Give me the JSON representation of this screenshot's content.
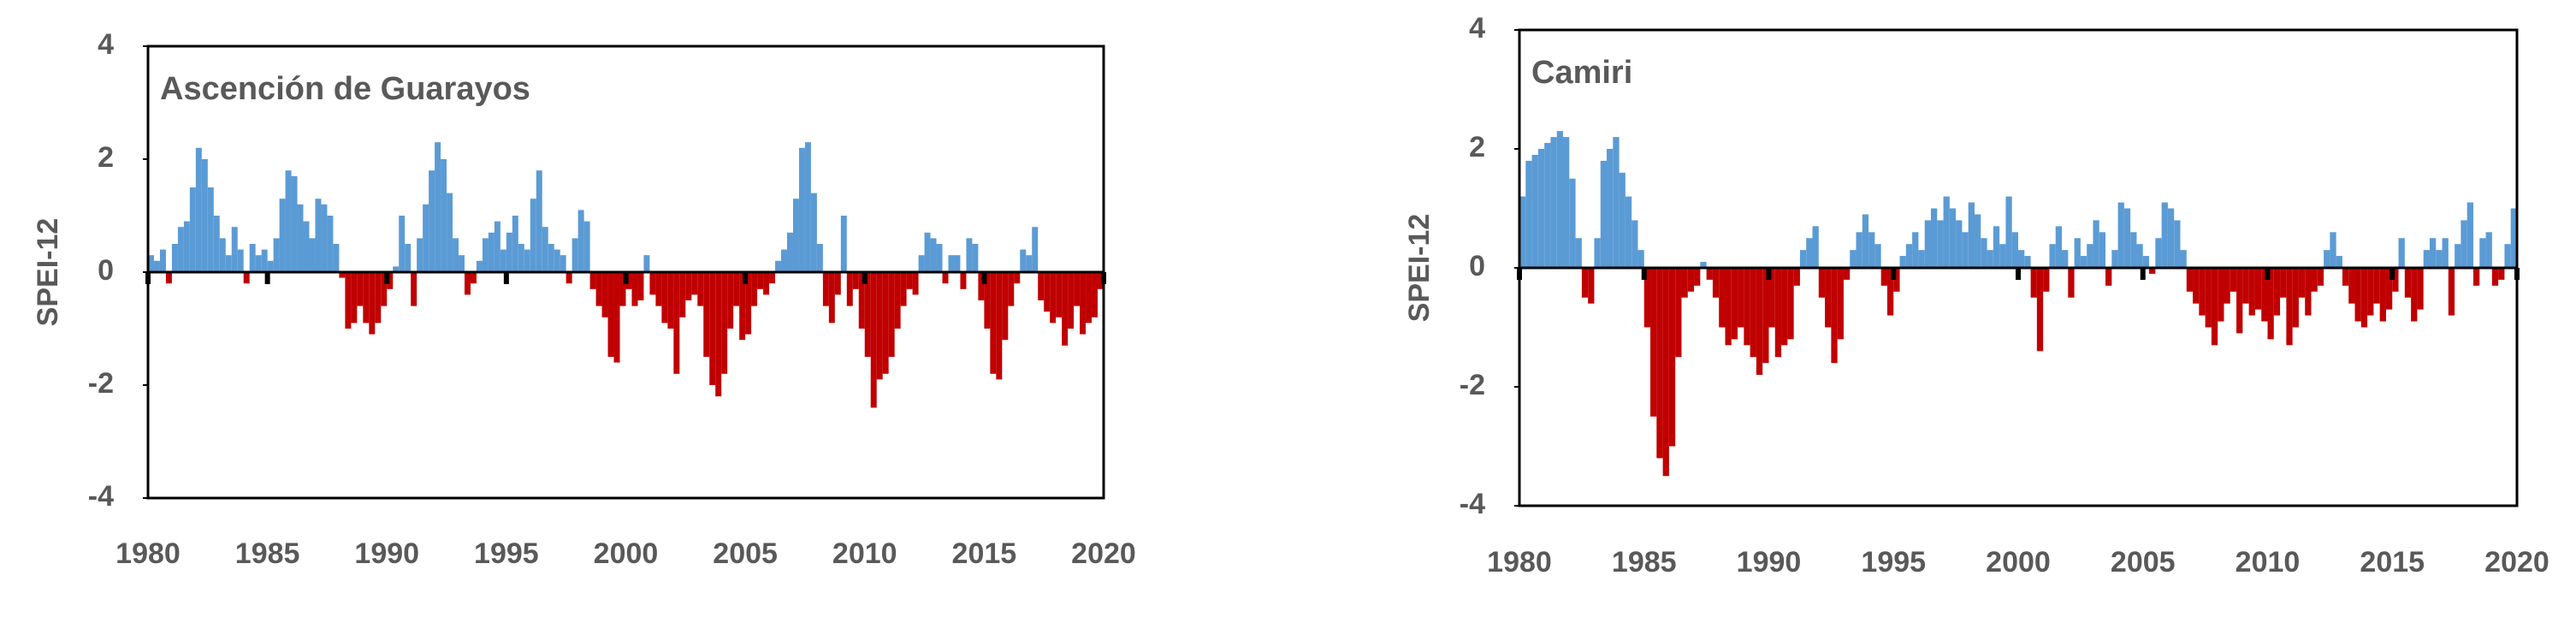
{
  "chart_data": [
    {
      "type": "bar",
      "title": "Ascención de Guarayos",
      "y_label": "SPEI-12",
      "x": [
        1980,
        1980.25,
        1980.5,
        1980.75,
        1981,
        1981.25,
        1981.5,
        1981.75,
        1982,
        1982.25,
        1982.5,
        1982.75,
        1983,
        1983.25,
        1983.5,
        1983.75,
        1984,
        1984.25,
        1984.5,
        1984.75,
        1985,
        1985.25,
        1985.5,
        1985.75,
        1986,
        1986.25,
        1986.5,
        1986.75,
        1987,
        1987.25,
        1987.5,
        1987.75,
        1988,
        1988.25,
        1988.5,
        1988.75,
        1989,
        1989.25,
        1989.5,
        1989.75,
        1990,
        1990.25,
        1990.5,
        1990.75,
        1991,
        1991.25,
        1991.5,
        1991.75,
        1992,
        1992.25,
        1992.5,
        1992.75,
        1993,
        1993.25,
        1993.5,
        1993.75,
        1994,
        1994.25,
        1994.5,
        1994.75,
        1995,
        1995.25,
        1995.5,
        1995.75,
        1996,
        1996.25,
        1996.5,
        1996.75,
        1997,
        1997.25,
        1997.5,
        1997.75,
        1998,
        1998.25,
        1998.5,
        1998.75,
        1999,
        1999.25,
        1999.5,
        1999.75,
        2000,
        2000.25,
        2000.5,
        2000.75,
        2001,
        2001.25,
        2001.5,
        2001.75,
        2002,
        2002.25,
        2002.5,
        2002.75,
        2003,
        2003.25,
        2003.5,
        2003.75,
        2004,
        2004.25,
        2004.5,
        2004.75,
        2005,
        2005.25,
        2005.5,
        2005.75,
        2006,
        2006.25,
        2006.5,
        2006.75,
        2007,
        2007.25,
        2007.5,
        2007.75,
        2008,
        2008.25,
        2008.5,
        2008.75,
        2009,
        2009.25,
        2009.5,
        2009.75,
        2010,
        2010.25,
        2010.5,
        2010.75,
        2011,
        2011.25,
        2011.5,
        2011.75,
        2012,
        2012.25,
        2012.5,
        2012.75,
        2013,
        2013.25,
        2013.5,
        2013.75,
        2014,
        2014.25,
        2014.5,
        2014.75,
        2015,
        2015.25,
        2015.5,
        2015.75,
        2016,
        2016.25,
        2016.5,
        2016.75,
        2017,
        2017.25,
        2017.5,
        2017.75,
        2018,
        2018.25,
        2018.5,
        2018.75,
        2019,
        2019.25,
        2019.5,
        2019.75
      ],
      "values": [
        0.3,
        0.2,
        0.4,
        -0.2,
        0.5,
        0.8,
        0.9,
        1.5,
        2.2,
        2.0,
        1.5,
        1.0,
        0.6,
        0.3,
        0.8,
        0.4,
        -0.2,
        0.5,
        0.3,
        0.4,
        0.2,
        0.6,
        1.3,
        1.8,
        1.7,
        1.2,
        0.9,
        0.6,
        1.3,
        1.2,
        1.0,
        0.5,
        -0.1,
        -1.0,
        -0.9,
        -0.6,
        -0.9,
        -1.1,
        -0.9,
        -0.6,
        -0.3,
        0.1,
        1.0,
        0.5,
        -0.6,
        0.6,
        1.2,
        1.8,
        2.3,
        2.0,
        1.4,
        0.6,
        0.3,
        -0.4,
        -0.2,
        0.2,
        0.6,
        0.7,
        0.9,
        0.4,
        0.7,
        1.0,
        0.5,
        0.4,
        1.3,
        1.8,
        0.8,
        0.5,
        0.4,
        0.3,
        -0.2,
        0.6,
        1.1,
        0.9,
        -0.3,
        -0.6,
        -0.8,
        -1.5,
        -1.6,
        -0.6,
        -0.3,
        -0.6,
        -0.5,
        0.3,
        -0.4,
        -0.6,
        -0.9,
        -1.0,
        -1.8,
        -0.8,
        -0.5,
        -0.4,
        -0.6,
        -1.5,
        -2.0,
        -2.2,
        -1.8,
        -1.0,
        -0.6,
        -1.2,
        -1.1,
        -0.6,
        -0.3,
        -0.4,
        -0.2,
        0.2,
        0.4,
        0.7,
        1.3,
        2.2,
        2.3,
        1.4,
        0.5,
        -0.6,
        -0.9,
        -0.4,
        1.0,
        -0.6,
        -0.3,
        -1.0,
        -1.5,
        -2.4,
        -1.9,
        -1.8,
        -1.5,
        -1.0,
        -0.6,
        -0.3,
        -0.4,
        0.3,
        0.7,
        0.6,
        0.5,
        -0.2,
        0.3,
        0.3,
        -0.3,
        0.6,
        0.5,
        -0.5,
        -1.0,
        -1.8,
        -1.9,
        -1.2,
        -0.6,
        -0.2,
        0.4,
        0.3,
        0.8,
        -0.5,
        -0.7,
        -0.9,
        -0.8,
        -1.3,
        -1.0,
        -0.6,
        -1.1,
        -0.9,
        -0.8,
        -0.3
      ],
      "pos_color": "#5b9bd5",
      "neg_color": "#c00000",
      "xlim": [
        1980,
        2020
      ],
      "xticks": [
        1980,
        1985,
        1990,
        1995,
        2000,
        2005,
        2010,
        2015,
        2020
      ],
      "ylim": [
        -4,
        4
      ],
      "yticks": [
        4,
        2,
        0,
        -2,
        -4
      ]
    },
    {
      "type": "bar",
      "title": "Camiri",
      "y_label": "SPEI-12",
      "x": [
        1980,
        1980.25,
        1980.5,
        1980.75,
        1981,
        1981.25,
        1981.5,
        1981.75,
        1982,
        1982.25,
        1982.5,
        1982.75,
        1983,
        1983.25,
        1983.5,
        1983.75,
        1984,
        1984.25,
        1984.5,
        1984.75,
        1985,
        1985.25,
        1985.5,
        1985.75,
        1986,
        1986.25,
        1986.5,
        1986.75,
        1987,
        1987.25,
        1987.5,
        1987.75,
        1988,
        1988.25,
        1988.5,
        1988.75,
        1989,
        1989.25,
        1989.5,
        1989.75,
        1990,
        1990.25,
        1990.5,
        1990.75,
        1991,
        1991.25,
        1991.5,
        1991.75,
        1992,
        1992.25,
        1992.5,
        1992.75,
        1993,
        1993.25,
        1993.5,
        1993.75,
        1994,
        1994.25,
        1994.5,
        1994.75,
        1995,
        1995.25,
        1995.5,
        1995.75,
        1996,
        1996.25,
        1996.5,
        1996.75,
        1997,
        1997.25,
        1997.5,
        1997.75,
        1998,
        1998.25,
        1998.5,
        1998.75,
        1999,
        1999.25,
        1999.5,
        1999.75,
        2000,
        2000.25,
        2000.5,
        2000.75,
        2001,
        2001.25,
        2001.5,
        2001.75,
        2002,
        2002.25,
        2002.5,
        2002.75,
        2003,
        2003.25,
        2003.5,
        2003.75,
        2004,
        2004.25,
        2004.5,
        2004.75,
        2005,
        2005.25,
        2005.5,
        2005.75,
        2006,
        2006.25,
        2006.5,
        2006.75,
        2007,
        2007.25,
        2007.5,
        2007.75,
        2008,
        2008.25,
        2008.5,
        2008.75,
        2009,
        2009.25,
        2009.5,
        2009.75,
        2010,
        2010.25,
        2010.5,
        2010.75,
        2011,
        2011.25,
        2011.5,
        2011.75,
        2012,
        2012.25,
        2012.5,
        2012.75,
        2013,
        2013.25,
        2013.5,
        2013.75,
        2014,
        2014.25,
        2014.5,
        2014.75,
        2015,
        2015.25,
        2015.5,
        2015.75,
        2016,
        2016.25,
        2016.5,
        2016.75,
        2017,
        2017.25,
        2017.5,
        2017.75,
        2018,
        2018.25,
        2018.5,
        2018.75,
        2019,
        2019.25,
        2019.5,
        2019.75
      ],
      "values": [
        1.2,
        1.8,
        1.9,
        2.0,
        2.1,
        2.2,
        2.3,
        2.2,
        1.5,
        0.5,
        -0.5,
        -0.6,
        0.5,
        1.8,
        2.0,
        2.2,
        1.6,
        1.2,
        0.8,
        0.3,
        -1.0,
        -2.5,
        -3.2,
        -3.5,
        -3.0,
        -1.5,
        -0.5,
        -0.4,
        -0.3,
        0.1,
        -0.2,
        -0.5,
        -1.0,
        -1.3,
        -1.2,
        -1.0,
        -1.3,
        -1.5,
        -1.8,
        -1.6,
        -1.0,
        -1.5,
        -1.3,
        -1.2,
        -0.3,
        0.3,
        0.5,
        0.7,
        -0.5,
        -1.0,
        -1.6,
        -1.2,
        -0.2,
        0.3,
        0.6,
        0.9,
        0.6,
        0.4,
        -0.3,
        -0.8,
        -0.4,
        0.2,
        0.4,
        0.6,
        0.3,
        0.8,
        1.0,
        0.8,
        1.2,
        1.0,
        0.8,
        0.6,
        1.1,
        0.9,
        0.5,
        0.3,
        0.7,
        0.4,
        1.2,
        0.6,
        0.3,
        0.2,
        -0.5,
        -1.4,
        -0.4,
        0.4,
        0.7,
        0.3,
        -0.5,
        0.5,
        0.2,
        0.4,
        0.8,
        0.6,
        -0.3,
        0.3,
        1.1,
        1.0,
        0.6,
        0.4,
        0.2,
        -0.1,
        0.5,
        1.1,
        1.0,
        0.8,
        0.3,
        -0.4,
        -0.6,
        -0.8,
        -1.0,
        -1.3,
        -0.9,
        -0.6,
        -0.4,
        -1.1,
        -0.6,
        -0.8,
        -0.7,
        -0.9,
        -1.2,
        -0.8,
        -0.5,
        -1.3,
        -1.0,
        -0.5,
        -0.8,
        -0.4,
        -0.3,
        0.3,
        0.6,
        0.2,
        -0.3,
        -0.6,
        -0.9,
        -1.0,
        -0.8,
        -0.6,
        -0.9,
        -0.7,
        -0.4,
        0.5,
        -0.5,
        -0.9,
        -0.7,
        0.3,
        0.5,
        0.3,
        0.5,
        -0.8,
        0.4,
        0.8,
        1.1,
        -0.3,
        0.5,
        0.6,
        -0.3,
        -0.2,
        0.4,
        1.0
      ],
      "pos_color": "#5b9bd5",
      "neg_color": "#c00000",
      "xlim": [
        1980,
        2020
      ],
      "xticks": [
        1980,
        1985,
        1990,
        1995,
        2000,
        2005,
        2010,
        2015,
        2020
      ],
      "ylim": [
        -4,
        4
      ],
      "yticks": [
        4,
        2,
        0,
        -2,
        -4
      ]
    }
  ]
}
